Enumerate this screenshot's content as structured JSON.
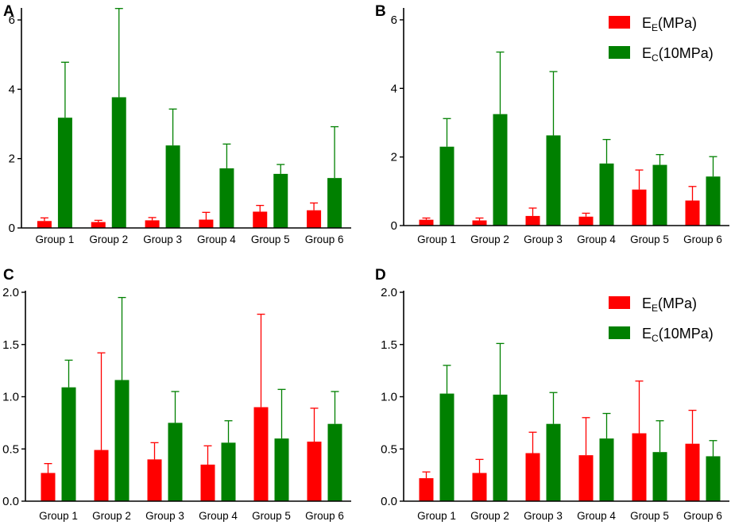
{
  "colors": {
    "E_E": "#ff0000",
    "E_C": "#008000",
    "axis": "#000000"
  },
  "legend": {
    "items": [
      {
        "key": "E_E",
        "main": "E",
        "sub": "E",
        "rest": "(MPa)"
      },
      {
        "key": "E_C",
        "main": "E",
        "sub": "C",
        "rest": "(10MPa)"
      }
    ]
  },
  "chart_data": [
    {
      "panel": "A",
      "type": "bar",
      "categories": [
        "Group 1",
        "Group 2",
        "Group 3",
        "Group 4",
        "Group 5",
        "Group 6"
      ],
      "ylim": [
        0,
        6.3
      ],
      "yticks": [
        0,
        2,
        4,
        6
      ],
      "show_legend": false,
      "series": [
        {
          "name": "E_E(MPa)",
          "key": "E_E",
          "values": [
            0.2,
            0.17,
            0.22,
            0.24,
            0.47,
            0.51
          ],
          "errors": [
            0.09,
            0.05,
            0.08,
            0.21,
            0.18,
            0.21
          ]
        },
        {
          "name": "E_C(10MPa)",
          "key": "E_C",
          "values": [
            3.18,
            3.77,
            2.38,
            1.72,
            1.56,
            1.44
          ],
          "errors": [
            1.6,
            2.56,
            1.05,
            0.7,
            0.27,
            1.48
          ]
        }
      ]
    },
    {
      "panel": "B",
      "type": "bar",
      "categories": [
        "Group 1",
        "Group 2",
        "Group 3",
        "Group 4",
        "Group 5",
        "Group 6"
      ],
      "ylim": [
        0,
        6.3
      ],
      "yticks": [
        0,
        2,
        4,
        6
      ],
      "show_legend": true,
      "series": [
        {
          "name": "E_E(MPa)",
          "key": "E_E",
          "values": [
            0.17,
            0.15,
            0.28,
            0.26,
            1.05,
            0.73
          ],
          "errors": [
            0.05,
            0.07,
            0.23,
            0.1,
            0.57,
            0.41
          ]
        },
        {
          "name": "E_C(10MPa)",
          "key": "E_C",
          "values": [
            2.3,
            3.25,
            2.63,
            1.81,
            1.77,
            1.43
          ],
          "errors": [
            0.82,
            1.81,
            1.86,
            0.7,
            0.3,
            0.58
          ]
        }
      ]
    },
    {
      "panel": "C",
      "type": "bar",
      "categories": [
        "Group 1",
        "Group 2",
        "Group 3",
        "Group 4",
        "Group 5",
        "Group 6"
      ],
      "ylim": [
        0,
        2.0
      ],
      "yticks": [
        0.0,
        0.5,
        1.0,
        1.5,
        2.0
      ],
      "show_legend": false,
      "series": [
        {
          "name": "E_E(MPa)",
          "key": "E_E",
          "values": [
            0.27,
            0.49,
            0.4,
            0.35,
            0.9,
            0.57
          ],
          "errors": [
            0.09,
            0.93,
            0.16,
            0.18,
            0.89,
            0.32
          ]
        },
        {
          "name": "E_C(10MPa)",
          "key": "E_C",
          "values": [
            1.09,
            1.16,
            0.75,
            0.56,
            0.6,
            0.74
          ],
          "errors": [
            0.26,
            0.79,
            0.3,
            0.21,
            0.47,
            0.31
          ]
        }
      ]
    },
    {
      "panel": "D",
      "type": "bar",
      "categories": [
        "Group 1",
        "Group 2",
        "Group 3",
        "Group 4",
        "Group 5",
        "Group 6"
      ],
      "ylim": [
        0,
        2.0
      ],
      "yticks": [
        0.0,
        0.5,
        1.0,
        1.5,
        2.0
      ],
      "show_legend": true,
      "series": [
        {
          "name": "E_E(MPa)",
          "key": "E_E",
          "values": [
            0.22,
            0.27,
            0.46,
            0.44,
            0.65,
            0.55
          ],
          "errors": [
            0.06,
            0.13,
            0.2,
            0.36,
            0.5,
            0.32
          ]
        },
        {
          "name": "E_C(10MPa)",
          "key": "E_C",
          "values": [
            1.03,
            1.02,
            0.74,
            0.6,
            0.47,
            0.43
          ],
          "errors": [
            0.27,
            0.49,
            0.3,
            0.24,
            0.3,
            0.15
          ]
        }
      ]
    }
  ]
}
